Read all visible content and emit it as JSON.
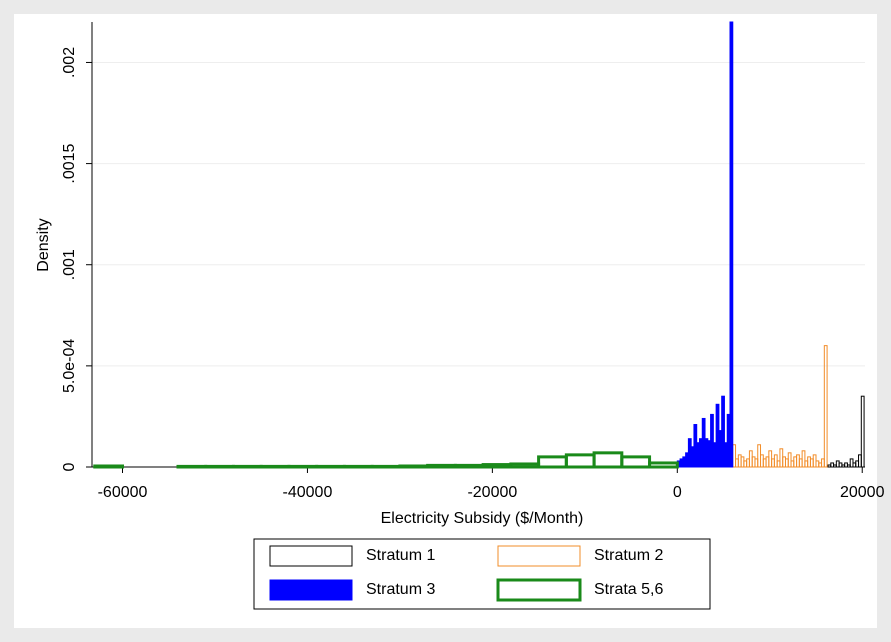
{
  "chart_data": {
    "type": "histogram",
    "x_label": "Electricity Subsidy ($/Month)",
    "y_label": "Density",
    "xlim": [
      -63300,
      20300
    ],
    "ylim": [
      0,
      0.0022
    ],
    "xticks": [
      -60000,
      -40000,
      -20000,
      0,
      20000
    ],
    "yticks": [
      0,
      {
        "value": 0.0005,
        "label": "5.0e-04"
      },
      {
        "value": 0.001,
        "label": ".001"
      },
      {
        "value": 0.0015,
        "label": ".0015"
      },
      {
        "value": 0.002,
        "label": ".002"
      }
    ],
    "grid": true,
    "legend": "bottom",
    "series": [
      {
        "name": "Stratum 1",
        "color": "#000000",
        "filled": false,
        "line_width": 1,
        "bins": [
          16300,
          16600,
          16900,
          17200,
          17500,
          17800,
          18100,
          18400,
          18700,
          19000,
          19300,
          19600,
          19900,
          20200
        ],
        "values": [
          1e-05,
          2e-05,
          1e-05,
          3e-05,
          2e-05,
          1e-05,
          2e-05,
          1e-05,
          4e-05,
          2e-05,
          3e-05,
          6e-05,
          0.00035
        ]
      },
      {
        "name": "Stratum 2",
        "color": "#f28c28",
        "filled": false,
        "line_width": 1,
        "bins": [
          6000,
          6300,
          6600,
          6900,
          7200,
          7500,
          7800,
          8100,
          8400,
          8700,
          9000,
          9300,
          9600,
          9900,
          10200,
          10500,
          10800,
          11100,
          11400,
          11700,
          12000,
          12300,
          12600,
          12900,
          13200,
          13500,
          13800,
          14100,
          14400,
          14700,
          15000,
          15300,
          15600,
          15900,
          16200,
          16500
        ],
        "values": [
          0.00011,
          4e-05,
          6e-05,
          5e-05,
          3e-05,
          4e-05,
          8e-05,
          5e-05,
          4e-05,
          0.00011,
          6e-05,
          4e-05,
          5e-05,
          8e-05,
          4e-05,
          6e-05,
          3e-05,
          9e-05,
          5e-05,
          4e-05,
          7e-05,
          3e-05,
          5e-05,
          6e-05,
          4e-05,
          8e-05,
          3e-05,
          5e-05,
          4e-05,
          6e-05,
          3e-05,
          2e-05,
          4e-05,
          0.0006,
          0
        ]
      },
      {
        "name": "Stratum 3",
        "color": "#0000ff",
        "filled": true,
        "line_width": 1,
        "bins": [
          0,
          300,
          600,
          900,
          1200,
          1500,
          1800,
          2100,
          2400,
          2700,
          3000,
          3300,
          3600,
          3900,
          4200,
          4500,
          4800,
          5100,
          5400,
          5700,
          6000
        ],
        "values": [
          3e-05,
          4e-05,
          5e-05,
          7e-05,
          0.00014,
          0.0001,
          0.00021,
          0.00012,
          0.00014,
          0.00024,
          0.00014,
          0.00013,
          0.00026,
          0.00012,
          0.00031,
          0.00018,
          0.00035,
          0.00012,
          0.00026,
          0.0022
        ]
      },
      {
        "name": "Strata 5,6",
        "color": "#1a8a1a",
        "filled": false,
        "line_width": 3,
        "bins": [
          -63000,
          -60000,
          -57000,
          -54000,
          -51000,
          -48000,
          -45000,
          -42000,
          -39000,
          -36000,
          -33000,
          -30000,
          -27000,
          -24000,
          -21000,
          -18000,
          -15000,
          -12000,
          -9000,
          -6000,
          -3000,
          0
        ],
        "values": [
          5e-06,
          0,
          0,
          3e-06,
          3e-06,
          3e-06,
          3e-06,
          3e-06,
          3e-06,
          3e-06,
          3e-06,
          5e-06,
          8e-06,
          8e-06,
          1.2e-05,
          1.5e-05,
          5e-05,
          6e-05,
          7e-05,
          5e-05,
          2e-05
        ]
      }
    ]
  }
}
